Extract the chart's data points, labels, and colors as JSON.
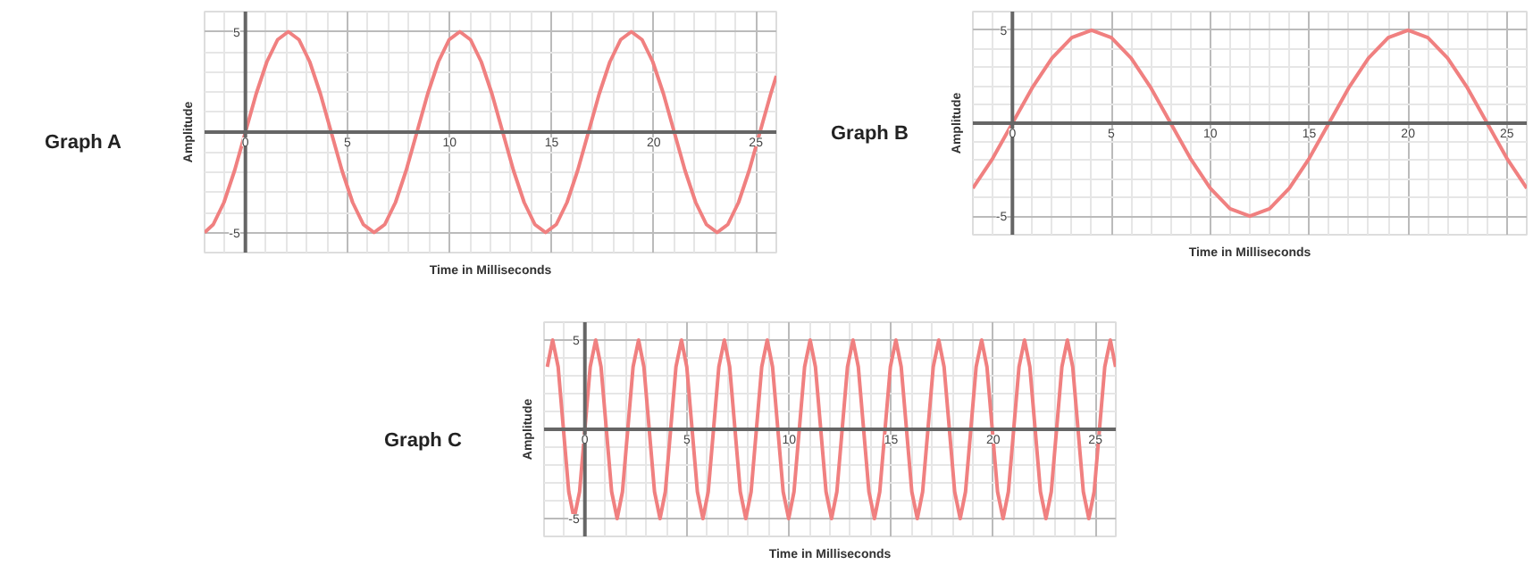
{
  "chart_data": [
    {
      "type": "line",
      "title": "Graph A",
      "xlabel": "Time in Milliseconds",
      "ylabel": "Amplitude",
      "xlim": [
        -2,
        26
      ],
      "ylim": [
        -6,
        6
      ],
      "xticks": [
        0,
        5,
        10,
        15,
        20,
        25
      ],
      "yticks": [
        -5,
        5
      ],
      "grid": true,
      "x": [
        -2,
        -1.575,
        -1.05,
        -0.525,
        0,
        0.525,
        1.05,
        1.575,
        2.1,
        2.625,
        3.15,
        3.675,
        4.2,
        4.725,
        5.25,
        5.775,
        6.3,
        6.825,
        7.35,
        7.875,
        8.4,
        8.925,
        9.45,
        9.975,
        10.5,
        11.025,
        11.55,
        12.075,
        12.6,
        13.125,
        13.65,
        14.175,
        14.7,
        15.225,
        15.75,
        16.275,
        16.8,
        17.325,
        17.85,
        18.375,
        18.9,
        19.425,
        19.95,
        20.475,
        21,
        21.525,
        22.05,
        22.575,
        23.1,
        23.625,
        24.15,
        24.675,
        25.2,
        25.725,
        26
      ],
      "series": [
        {
          "color": "#f08080",
          "values": [
            -5,
            -4.6,
            -3.5,
            -1.9,
            0,
            1.9,
            3.5,
            4.6,
            5,
            4.6,
            3.5,
            1.9,
            0,
            -1.9,
            -3.5,
            -4.6,
            -5,
            -4.6,
            -3.5,
            -1.9,
            0,
            1.9,
            3.5,
            4.6,
            5,
            4.6,
            3.5,
            1.9,
            0,
            -1.9,
            -3.5,
            -4.6,
            -5,
            -4.6,
            -3.5,
            -1.9,
            0,
            1.9,
            3.5,
            4.6,
            5,
            4.6,
            3.5,
            1.9,
            0,
            -1.9,
            -3.5,
            -4.6,
            -5,
            -4.6,
            -3.5,
            -1.9,
            0,
            1.9,
            2.8
          ]
        }
      ]
    },
    {
      "type": "line",
      "title": "Graph B",
      "xlabel": "Time in Milliseconds",
      "ylabel": "Amplitude",
      "xlim": [
        -2,
        26
      ],
      "ylim": [
        -6,
        6
      ],
      "xticks": [
        0,
        5,
        10,
        15,
        20,
        25
      ],
      "yticks": [
        -5,
        5
      ],
      "grid": true,
      "x": [
        -2,
        -1,
        0,
        1,
        2,
        3,
        4,
        5,
        6,
        7,
        8,
        9,
        10,
        11,
        12,
        13,
        14,
        15,
        16,
        17,
        18,
        19,
        20,
        21,
        22,
        23,
        24,
        25,
        26
      ],
      "series": [
        {
          "color": "#f08080",
          "values": [
            -3.5,
            -1.9,
            0,
            1.9,
            3.5,
            4.6,
            5,
            4.6,
            3.5,
            1.9,
            0,
            -1.9,
            -3.5,
            -4.6,
            -5,
            -4.6,
            -3.5,
            -1.9,
            0,
            1.9,
            3.5,
            4.6,
            5,
            4.6,
            3.5,
            1.9,
            0,
            -1.9,
            -3.5
          ]
        }
      ]
    },
    {
      "type": "line",
      "title": "Graph C",
      "xlabel": "Time in Milliseconds",
      "ylabel": "Amplitude",
      "xlim": [
        -2,
        26
      ],
      "ylim": [
        -6,
        6
      ],
      "xticks": [
        0,
        5,
        10,
        15,
        20,
        25
      ],
      "yticks": [
        -5,
        5
      ],
      "grid": true,
      "x": [
        -1.84,
        -1.58,
        -1.31,
        -1.05,
        -0.79,
        -0.53,
        -0.26,
        0,
        0.26,
        0.53,
        0.79,
        1.05,
        1.31,
        1.58,
        1.84,
        2.1,
        2.36,
        2.63,
        2.89,
        3.15,
        3.41,
        3.68,
        3.94,
        4.2,
        4.46,
        4.73,
        4.99,
        5.25,
        5.51,
        5.78,
        6.04,
        6.3,
        6.56,
        6.83,
        7.09,
        7.35,
        7.61,
        7.88,
        8.14,
        8.4,
        8.66,
        8.93,
        9.19,
        9.45,
        9.71,
        9.98,
        10.24,
        10.5,
        10.76,
        11.03,
        11.29,
        11.55,
        11.81,
        12.08,
        12.34,
        12.6,
        12.86,
        13.13,
        13.39,
        13.65,
        13.91,
        14.18,
        14.44,
        14.7,
        14.96,
        15.23,
        15.49,
        15.75,
        16.01,
        16.28,
        16.54,
        16.8,
        17.06,
        17.33,
        17.59,
        17.85,
        18.11,
        18.38,
        18.64,
        18.9,
        19.16,
        19.43,
        19.69,
        19.95,
        20.21,
        20.48,
        20.74,
        21,
        21.26,
        21.53,
        21.79,
        22.05,
        22.31,
        22.58,
        22.84,
        23.1,
        23.36,
        23.63,
        23.89,
        24.15,
        24.41,
        24.68,
        24.94,
        25.2,
        25.46,
        25.73,
        25.99
      ],
      "series": [
        {
          "color": "#f08080",
          "values": [
            3.5,
            5,
            3.5,
            0,
            -3.5,
            -5,
            -3.5,
            0,
            3.5,
            5,
            3.5,
            0,
            -3.5,
            -5,
            -3.5,
            0,
            3.5,
            5,
            3.5,
            0,
            -3.5,
            -5,
            -3.5,
            0,
            3.5,
            5,
            3.5,
            0,
            -3.5,
            -5,
            -3.5,
            0,
            3.5,
            5,
            3.5,
            0,
            -3.5,
            -5,
            -3.5,
            0,
            3.5,
            5,
            3.5,
            0,
            -3.5,
            -5,
            -3.5,
            0,
            3.5,
            5,
            3.5,
            0,
            -3.5,
            -5,
            -3.5,
            0,
            3.5,
            5,
            3.5,
            0,
            -3.5,
            -5,
            -3.5,
            0,
            3.5,
            5,
            3.5,
            0,
            -3.5,
            -5,
            -3.5,
            0,
            3.5,
            5,
            3.5,
            0,
            -3.5,
            -5,
            -3.5,
            0,
            3.5,
            5,
            3.5,
            0,
            -3.5,
            -5,
            -3.5,
            0,
            3.5,
            5,
            3.5,
            0,
            -3.5,
            -5,
            -3.5,
            0,
            3.5,
            5,
            3.5,
            0,
            -3.5,
            -5,
            -3.5,
            0,
            3.5,
            5,
            3.5
          ]
        }
      ]
    }
  ]
}
